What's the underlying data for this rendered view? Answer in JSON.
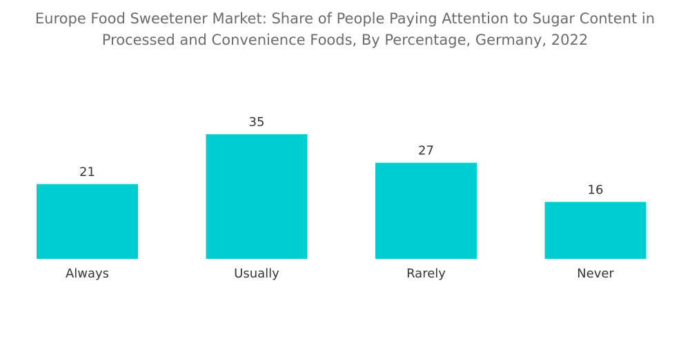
{
  "chart_data": {
    "type": "bar",
    "title_lines": [
      "Europe Food Sweetener Market: Share of People Paying Attention to Sugar Content in",
      "Processed and Convenience Foods, By Percentage, Germany, 2022"
    ],
    "categories": [
      "Always",
      "Usually",
      "Rarely",
      "Never"
    ],
    "values": [
      21,
      35,
      27,
      16
    ],
    "xlabel": "",
    "ylabel": "",
    "ylim": [
      0,
      35
    ],
    "grid": false,
    "bar_color": "#00CED1"
  }
}
